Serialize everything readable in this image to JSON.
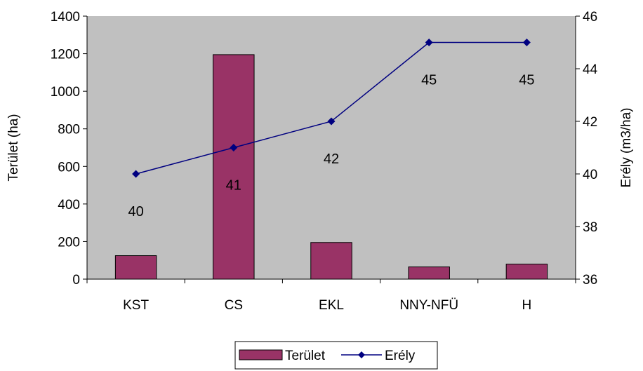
{
  "chart_data": {
    "type": "bar",
    "categories": [
      "KST",
      "CS",
      "EKL",
      "NNY-NFÜ",
      "H"
    ],
    "series": [
      {
        "name": "Terület",
        "type": "bar",
        "axis": "left",
        "values": [
          125,
          1195,
          195,
          65,
          80
        ],
        "color": "#993366"
      },
      {
        "name": "Erély",
        "type": "line",
        "axis": "right",
        "values": [
          40,
          41,
          42,
          45,
          45
        ],
        "color": "#000080"
      }
    ],
    "data_labels": [
      "40",
      "41",
      "42",
      "45",
      "45"
    ],
    "ylabel": "Terület (ha)",
    "y2label": "Erély (m3/ha)",
    "ylim": [
      0,
      1400
    ],
    "y2lim": [
      36,
      46
    ],
    "yticks": [
      "0",
      "200",
      "400",
      "600",
      "800",
      "1000",
      "1200",
      "1400"
    ],
    "y2ticks": [
      "36",
      "38",
      "40",
      "42",
      "44",
      "46"
    ],
    "plot_background": "#c0c0c0",
    "grid": false,
    "legend_position": "bottom"
  }
}
